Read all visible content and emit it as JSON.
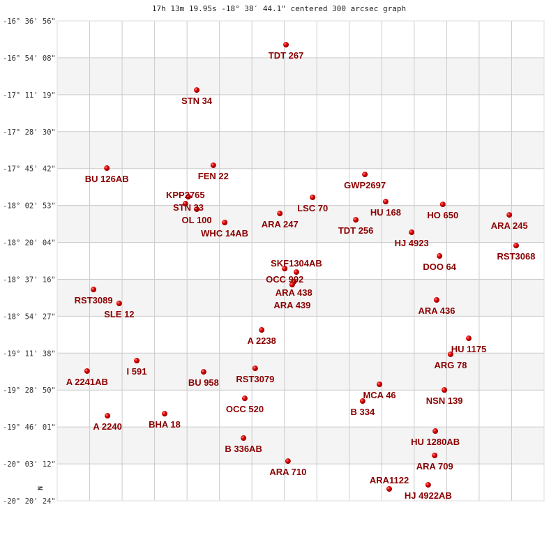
{
  "chart_data": {
    "type": "scatter",
    "title": "17h 13m 19.95s -18° 38′ 44.1\" centered 300 arcsec graph",
    "ylabel": "",
    "xlabel": "",
    "north_marker": "N",
    "x_range": [
      0,
      15
    ],
    "ylim": [
      -20.34,
      -16.6156
    ],
    "y_ticks": [
      "-16° 36' 56\"",
      "-16° 54' 08\"",
      "-17° 11' 19\"",
      "-17° 28' 30\"",
      "-17° 45' 42\"",
      "-18° 02' 53\"",
      "-18° 20' 04\"",
      "-18° 37' 16\"",
      "-18° 54' 27\"",
      "-19° 11' 38\"",
      "-19° 28' 50\"",
      "-19° 46' 01\"",
      "-20° 03' 12\"",
      "-20° 20' 24\""
    ],
    "grid": true,
    "alternating_bands": true,
    "colors": {
      "marker": "#dd0000",
      "label": "#8b0000",
      "band": "#f4f4f4",
      "grid": "#cccccc"
    },
    "points": [
      {
        "name": "TDT 267",
        "x": 7.05,
        "y": -16.8
      },
      {
        "name": "STN  34",
        "x": 4.3,
        "y": -17.152
      },
      {
        "name": "BU  126AB",
        "x": 1.53,
        "y": -17.758
      },
      {
        "name": "FEN  22",
        "x": 4.81,
        "y": -17.736
      },
      {
        "name": "GWP2697",
        "x": 9.48,
        "y": -17.807
      },
      {
        "name": "STN  33",
        "x": 4.04,
        "y": -17.98
      },
      {
        "name": "KPP2765",
        "x": 3.95,
        "y": -18.034
      },
      {
        "name": "OL  100",
        "x": 4.3,
        "y": -18.077
      },
      {
        "name": "WHC  14AB",
        "x": 5.16,
        "y": -18.18
      },
      {
        "name": "LSC  70",
        "x": 7.87,
        "y": -17.985
      },
      {
        "name": "ARA 247",
        "x": 6.86,
        "y": -18.11
      },
      {
        "name": "HU  168",
        "x": 10.12,
        "y": -18.018
      },
      {
        "name": "TDT 256",
        "x": 9.2,
        "y": -18.159
      },
      {
        "name": "HO  650",
        "x": 11.88,
        "y": -18.039
      },
      {
        "name": "ARA 245",
        "x": 13.93,
        "y": -18.121
      },
      {
        "name": "HJ 4923",
        "x": 10.92,
        "y": -18.256
      },
      {
        "name": "RST3068",
        "x": 14.14,
        "y": -18.359
      },
      {
        "name": "DOO  64",
        "x": 11.78,
        "y": -18.44
      },
      {
        "name": "OCC 992",
        "x": 7.01,
        "y": -18.538
      },
      {
        "name": "SKF1304AB",
        "x": 7.37,
        "y": -18.565
      },
      {
        "name": "ARA 438",
        "x": 7.29,
        "y": -18.64
      },
      {
        "name": "ARA 439",
        "x": 7.24,
        "y": -18.662
      },
      {
        "name": "RST3089",
        "x": 1.12,
        "y": -18.7
      },
      {
        "name": "SLE  12",
        "x": 1.91,
        "y": -18.808
      },
      {
        "name": "ARA 436",
        "x": 11.69,
        "y": -18.781
      },
      {
        "name": "A  2238",
        "x": 6.3,
        "y": -19.014
      },
      {
        "name": "HU 1175",
        "x": 12.68,
        "y": -19.079
      },
      {
        "name": "ARG  78",
        "x": 12.12,
        "y": -19.203
      },
      {
        "name": "I   591",
        "x": 2.45,
        "y": -19.252
      },
      {
        "name": "A  2241AB",
        "x": 0.92,
        "y": -19.333
      },
      {
        "name": "BU  958",
        "x": 4.51,
        "y": -19.339
      },
      {
        "name": "RST3079",
        "x": 6.1,
        "y": -19.312
      },
      {
        "name": "MCA  46",
        "x": 9.93,
        "y": -19.436
      },
      {
        "name": "NSN 139",
        "x": 11.93,
        "y": -19.48
      },
      {
        "name": "OCC 520",
        "x": 5.78,
        "y": -19.545
      },
      {
        "name": "B   334",
        "x": 9.41,
        "y": -19.566
      },
      {
        "name": "A  2240",
        "x": 1.55,
        "y": -19.68
      },
      {
        "name": "BHA  18",
        "x": 3.31,
        "y": -19.664
      },
      {
        "name": "B   336AB",
        "x": 5.74,
        "y": -19.853
      },
      {
        "name": "HU 1280AB",
        "x": 11.65,
        "y": -19.799
      },
      {
        "name": "ARA 710",
        "x": 7.11,
        "y": -20.032
      },
      {
        "name": "ARA 709",
        "x": 11.63,
        "y": -19.988
      },
      {
        "name": "HJ 4922AB",
        "x": 11.43,
        "y": -20.216
      },
      {
        "name": "ARA1122",
        "x": 10.23,
        "y": -20.248
      }
    ]
  }
}
